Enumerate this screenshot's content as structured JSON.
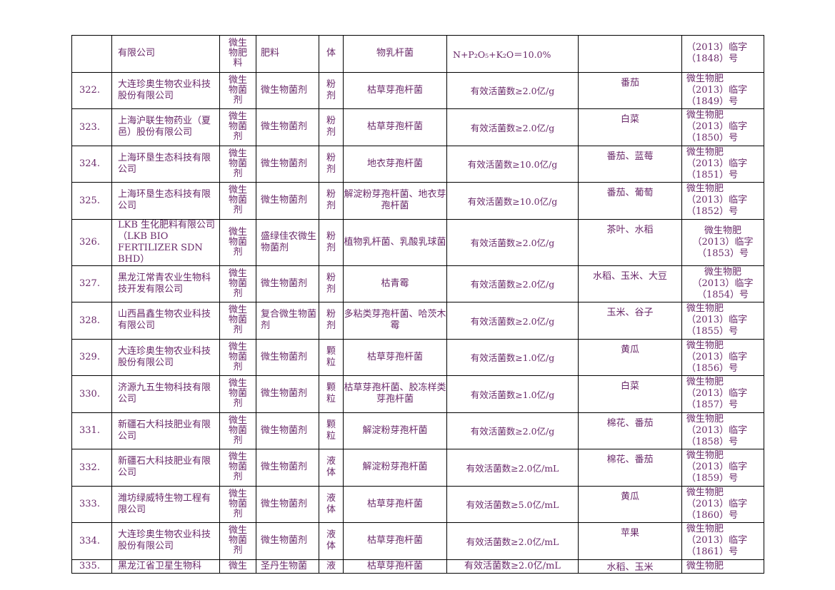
{
  "first_row": {
    "company": "有限公司",
    "category_lines": [
      "微生",
      "物肥",
      "料"
    ],
    "product": "肥料",
    "form": "体",
    "strain": "物乳杆菌",
    "indicator": "N+P₂O₅+K₂O＝10.0%",
    "crop": "",
    "cert_lines": [
      "（2013）临字",
      "（1848）号"
    ]
  },
  "rows": [
    {
      "no": "322.",
      "company": "大连珍奥生物农业科技股份有限公司",
      "category_lines": [
        "微生",
        "物菌",
        "剂"
      ],
      "product": "微生物菌剂",
      "form_lines": [
        "粉",
        "剂"
      ],
      "strain": "枯草芽孢杆菌",
      "indicator": "有效活菌数≥2.0亿/g",
      "crop": "番茄",
      "cert_lines": [
        "微生物肥",
        "（2013）临字",
        "（1849）号"
      ]
    },
    {
      "no": "323.",
      "company": "上海沪联生物药业（夏邑）股份有限公司",
      "category_lines": [
        "微生",
        "物菌",
        "剂"
      ],
      "product": "微生物菌剂",
      "form_lines": [
        "粉",
        "剂"
      ],
      "strain": "枯草芽孢杆菌",
      "indicator": "有效活菌数≥2.0亿/g",
      "crop": "白菜",
      "cert_lines": [
        "微生物肥",
        "（2013）临字",
        "（1850）号"
      ]
    },
    {
      "no": "324.",
      "company": "上海环垦生态科技有限公司",
      "category_lines": [
        "微生",
        "物菌",
        "剂"
      ],
      "product": "微生物菌剂",
      "form_lines": [
        "粉",
        "剂"
      ],
      "strain": "地衣芽孢杆菌",
      "indicator": "有效活菌数≥10.0亿/g",
      "crop": "番茄、蓝莓",
      "cert_lines": [
        "微生物肥",
        "（2013）临字",
        "（1851）号"
      ]
    },
    {
      "no": "325.",
      "company": "上海环垦生态科技有限公司",
      "category_lines": [
        "微生",
        "物菌",
        "剂"
      ],
      "product": "微生物菌剂",
      "form_lines": [
        "粉",
        "剂"
      ],
      "strain": "解淀粉芽孢杆菌、地衣芽孢杆菌",
      "indicator": "有效活菌数≥10.0亿/g",
      "crop": "番茄、葡萄",
      "cert_lines": [
        "微生物肥",
        "（2013）临字",
        "（1852）号"
      ]
    },
    {
      "no": "326.",
      "company": "LKB 生化肥料有限公司（LKB BIO FERTILIZER SDN BHD）",
      "category_lines": [
        "微生",
        "物菌",
        "剂"
      ],
      "product": "盛绿佳农微生物菌剂",
      "form_lines": [
        "粉",
        "剂"
      ],
      "strain": "植物乳杆菌、乳酸乳球菌",
      "indicator": "有效活菌数≥2.0亿/g",
      "crop": "茶叶、水稻",
      "cert_lines": [
        "微生物肥",
        "（2013）临字",
        "（1853）号"
      ]
    },
    {
      "no": "327.",
      "company": "黑龙江常青农业生物科技开发有限公司",
      "category_lines": [
        "微生",
        "物菌",
        "剂"
      ],
      "product": "微生物菌剂",
      "form_lines": [
        "粉",
        "剂"
      ],
      "strain": "枯青霉",
      "indicator": "有效活菌数≥2.0亿/g",
      "crop": "水稻、玉米、大豆",
      "cert_lines": [
        "微生物肥",
        "（2013）临字",
        "（1854）号"
      ]
    },
    {
      "no": "328.",
      "company": "山西昌鑫生物农业科技有限公司",
      "category_lines": [
        "微生",
        "物菌",
        "剂"
      ],
      "product": "复合微生物菌剂",
      "form_lines": [
        "粉",
        "剂"
      ],
      "strain": "多粘类芽孢杆菌、哈茨木霉",
      "indicator": "有效活菌数≥2.0亿/g",
      "crop": "玉米、谷子",
      "cert_lines": [
        "微生物肥",
        "（2013）临字",
        "（1855）号"
      ]
    },
    {
      "no": "329.",
      "company": "大连珍奥生物农业科技股份有限公司",
      "category_lines": [
        "微生",
        "物菌",
        "剂"
      ],
      "product": "微生物菌剂",
      "form_lines": [
        "颗",
        "粒"
      ],
      "strain": "枯草芽孢杆菌",
      "indicator": "有效活菌数≥1.0亿/g",
      "crop": "黄瓜",
      "cert_lines": [
        "微生物肥",
        "（2013）临字",
        "（1856）号"
      ]
    },
    {
      "no": "330.",
      "company": "济源九五生物科技有限公司",
      "category_lines": [
        "微生",
        "物菌",
        "剂"
      ],
      "product": "微生物菌剂",
      "form_lines": [
        "颗",
        "粒"
      ],
      "strain": "枯草芽孢杆菌、胶冻样类芽孢杆菌",
      "indicator": "有效活菌数≥1.0亿/g",
      "crop": "白菜",
      "cert_lines": [
        "微生物肥",
        "（2013）临字",
        "（1857）号"
      ]
    },
    {
      "no": "331.",
      "company": "新疆石大科技肥业有限公司",
      "category_lines": [
        "微生",
        "物菌",
        "剂"
      ],
      "product": "微生物菌剂",
      "form_lines": [
        "颗",
        "粒"
      ],
      "strain": "解淀粉芽孢杆菌",
      "indicator": "有效活菌数≥2.0亿/g",
      "crop": "棉花、番茄",
      "cert_lines": [
        "微生物肥",
        "（2013）临字",
        "（1858）号"
      ]
    },
    {
      "no": "332.",
      "company": "新疆石大科技肥业有限公司",
      "category_lines": [
        "微生",
        "物菌",
        "剂"
      ],
      "product": "微生物菌剂",
      "form_lines": [
        "液",
        "体"
      ],
      "strain": "解淀粉芽孢杆菌",
      "indicator": "有效活菌数≥2.0亿/mL",
      "crop": "棉花、番茄",
      "cert_lines": [
        "微生物肥",
        "（2013）临字",
        "（1859）号"
      ]
    },
    {
      "no": "333.",
      "company": "潍坊绿威特生物工程有限公司",
      "category_lines": [
        "微生",
        "物菌",
        "剂"
      ],
      "product": "微生物菌剂",
      "form_lines": [
        "液",
        "体"
      ],
      "strain": "枯草芽孢杆菌",
      "indicator": "有效活菌数≥5.0亿/mL",
      "crop": "黄瓜",
      "cert_lines": [
        "微生物肥",
        "（2013）临字",
        "（1860）号"
      ]
    },
    {
      "no": "334.",
      "company": "大连珍奥生物农业科技股份有限公司",
      "category_lines": [
        "微生",
        "物菌",
        "剂"
      ],
      "product": "微生物菌剂",
      "form_lines": [
        "液",
        "体"
      ],
      "strain": "枯草芽孢杆菌",
      "indicator": "有效活菌数≥2.0亿/mL",
      "crop": "苹果",
      "cert_lines": [
        "微生物肥",
        "（2013）临字",
        "（1861）号"
      ]
    }
  ],
  "last_row": {
    "no": "335.",
    "company": "黑龙江省卫星生物科",
    "category": "微生",
    "product": "圣丹生物菌",
    "form": "液",
    "strain": "枯草芽孢杆菌",
    "indicator": "有效活菌数≥2.0亿/mL",
    "crop": "水稻、玉米",
    "cert": "微生物肥"
  }
}
